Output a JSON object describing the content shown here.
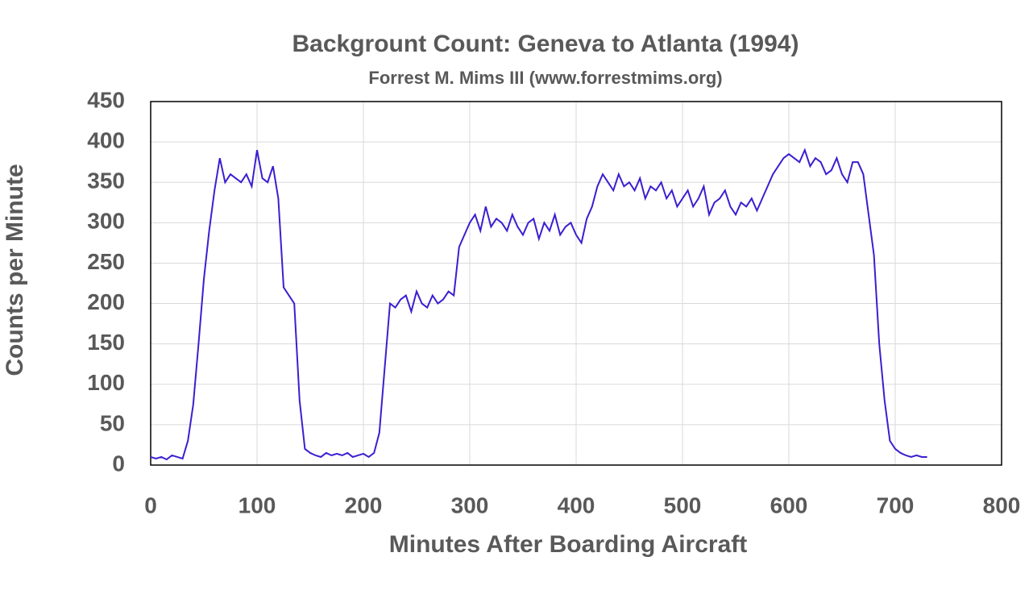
{
  "chart_data": {
    "type": "line",
    "title": "Backgrount Count: Geneva to Atlanta (1994)",
    "subtitle": "Forrest M. Mims III (www.forrestmims.org)",
    "xlabel": "Minutes After Boarding Aircraft",
    "ylabel": "Counts per Minute",
    "x": [
      0,
      5,
      10,
      15,
      20,
      25,
      30,
      35,
      40,
      45,
      50,
      55,
      60,
      65,
      70,
      75,
      80,
      85,
      90,
      95,
      100,
      105,
      110,
      115,
      120,
      125,
      130,
      135,
      140,
      145,
      150,
      155,
      160,
      165,
      170,
      175,
      180,
      185,
      190,
      195,
      200,
      205,
      210,
      215,
      220,
      225,
      230,
      235,
      240,
      245,
      250,
      255,
      260,
      265,
      270,
      275,
      280,
      285,
      290,
      295,
      300,
      305,
      310,
      315,
      320,
      325,
      330,
      335,
      340,
      345,
      350,
      355,
      360,
      365,
      370,
      375,
      380,
      385,
      390,
      395,
      400,
      405,
      410,
      415,
      420,
      425,
      430,
      435,
      440,
      445,
      450,
      455,
      460,
      465,
      470,
      475,
      480,
      485,
      490,
      495,
      500,
      505,
      510,
      515,
      520,
      525,
      530,
      535,
      540,
      545,
      550,
      555,
      560,
      565,
      570,
      575,
      580,
      585,
      590,
      595,
      600,
      605,
      610,
      615,
      620,
      625,
      630,
      635,
      640,
      645,
      650,
      655,
      660,
      665,
      670,
      675,
      680,
      685,
      690,
      695,
      700,
      705,
      710,
      715,
      720,
      725,
      730
    ],
    "series": [
      {
        "name": "Counts",
        "color": "#3a1fd0",
        "values": [
          10,
          8,
          10,
          7,
          12,
          10,
          8,
          30,
          75,
          150,
          230,
          290,
          340,
          380,
          350,
          360,
          355,
          350,
          360,
          345,
          390,
          355,
          350,
          370,
          330,
          220,
          210,
          200,
          80,
          20,
          15,
          12,
          10,
          15,
          12,
          14,
          12,
          15,
          10,
          12,
          14,
          10,
          15,
          40,
          120,
          200,
          195,
          205,
          210,
          190,
          215,
          200,
          195,
          210,
          200,
          205,
          215,
          210,
          270,
          285,
          300,
          310,
          290,
          320,
          295,
          305,
          300,
          290,
          310,
          295,
          285,
          300,
          305,
          280,
          300,
          290,
          310,
          285,
          295,
          300,
          285,
          275,
          305,
          320,
          345,
          360,
          350,
          340,
          360,
          345,
          350,
          340,
          355,
          330,
          345,
          340,
          350,
          330,
          340,
          320,
          330,
          340,
          320,
          330,
          345,
          310,
          325,
          330,
          340,
          320,
          310,
          325,
          320,
          330,
          315,
          330,
          345,
          360,
          370,
          380,
          385,
          380,
          375,
          390,
          370,
          380,
          375,
          360,
          365,
          380,
          360,
          350,
          375,
          375,
          360,
          310,
          260,
          150,
          80,
          30,
          20,
          15,
          12,
          10,
          12,
          10,
          10
        ]
      }
    ],
    "xlim": [
      0,
      800
    ],
    "xticks": [
      0,
      100,
      200,
      300,
      400,
      500,
      600,
      700,
      800
    ],
    "ylim": [
      0,
      450
    ],
    "yticks": [
      0,
      50,
      100,
      150,
      200,
      250,
      300,
      350,
      400,
      450
    ],
    "grid": true
  }
}
